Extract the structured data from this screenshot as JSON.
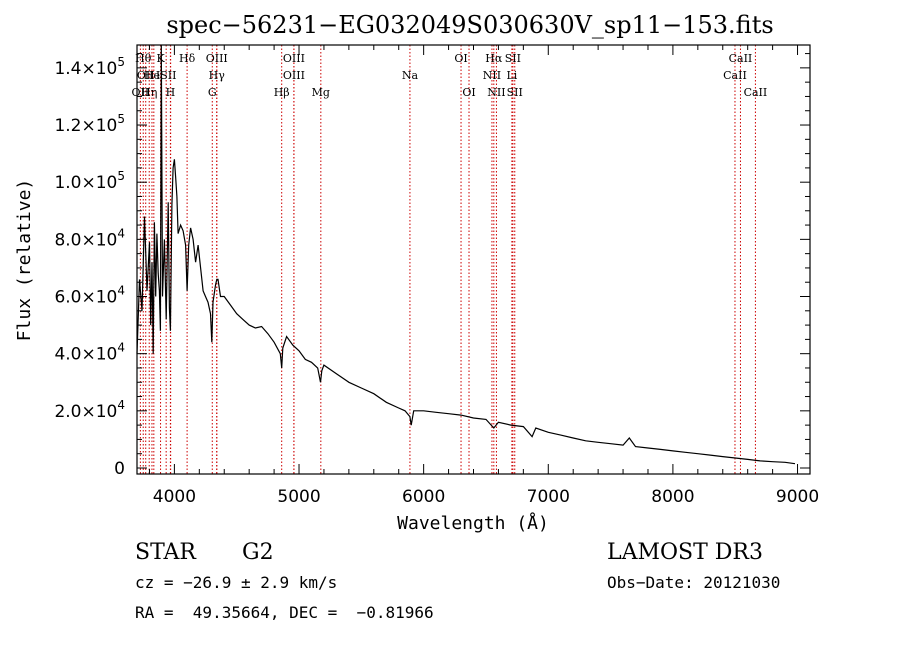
{
  "chart_data": {
    "type": "line",
    "title": "spec−56231−EG032049S030630V_sp11−153.fits",
    "xlabel": "Wavelength (Å)",
    "ylabel": "Flux (relative)",
    "xlim": [
      3700,
      9100
    ],
    "ylim": [
      0,
      148000
    ],
    "x_ticks": [
      {
        "value": 4000,
        "label": "4000"
      },
      {
        "value": 5000,
        "label": "5000"
      },
      {
        "value": 6000,
        "label": "6000"
      },
      {
        "value": 7000,
        "label": "7000"
      },
      {
        "value": 8000,
        "label": "8000"
      },
      {
        "value": 9000,
        "label": "9000"
      }
    ],
    "y_ticks": [
      {
        "value": 0,
        "mant": "0",
        "exp": ""
      },
      {
        "value": 20000,
        "mant": "2.0×10",
        "exp": "4"
      },
      {
        "value": 40000,
        "mant": "4.0×10",
        "exp": "4"
      },
      {
        "value": 60000,
        "mant": "6.0×10",
        "exp": "4"
      },
      {
        "value": 80000,
        "mant": "8.0×10",
        "exp": "4"
      },
      {
        "value": 100000,
        "mant": "1.0×10",
        "exp": "5"
      },
      {
        "value": 120000,
        "mant": "1.2×10",
        "exp": "5"
      },
      {
        "value": 140000,
        "mant": "1.4×10",
        "exp": "5"
      }
    ],
    "series": [
      {
        "name": "flux",
        "x": [
          3700,
          3720,
          3740,
          3760,
          3780,
          3800,
          3810,
          3820,
          3830,
          3840,
          3850,
          3860,
          3870,
          3880,
          3888,
          3895,
          3905,
          3920,
          3934,
          3950,
          3960,
          3968,
          3980,
          3990,
          4000,
          4010,
          4020,
          4030,
          4050,
          4070,
          4090,
          4102,
          4115,
          4130,
          4150,
          4170,
          4190,
          4210,
          4230,
          4250,
          4270,
          4290,
          4300,
          4310,
          4330,
          4340,
          4350,
          4370,
          4400,
          4450,
          4500,
          4550,
          4600,
          4650,
          4700,
          4750,
          4800,
          4850,
          4861,
          4870,
          4900,
          4950,
          5000,
          5050,
          5100,
          5150,
          5172,
          5183,
          5200,
          5300,
          5400,
          5500,
          5600,
          5700,
          5800,
          5850,
          5890,
          5900,
          5920,
          6000,
          6100,
          6200,
          6300,
          6400,
          6500,
          6563,
          6600,
          6700,
          6800,
          6870,
          6900,
          7000,
          7100,
          7200,
          7300,
          7400,
          7500,
          7600,
          7650,
          7700,
          7800,
          7900,
          8000,
          8100,
          8200,
          8300,
          8400,
          8500,
          8600,
          8700,
          8800,
          8900,
          8980
        ],
        "y": [
          40000,
          66000,
          55000,
          88000,
          62000,
          79000,
          50000,
          72000,
          40000,
          86000,
          60000,
          82000,
          68000,
          62000,
          48000,
          150000,
          60000,
          80000,
          52000,
          93000,
          56000,
          48000,
          92000,
          105000,
          108000,
          102000,
          95000,
          82000,
          85000,
          83000,
          78000,
          62000,
          78000,
          84000,
          80000,
          72000,
          78000,
          70000,
          62000,
          60000,
          58000,
          54000,
          44000,
          58000,
          64000,
          66000,
          66000,
          60000,
          60000,
          57000,
          54000,
          52000,
          50000,
          49000,
          49500,
          47000,
          44000,
          40000,
          35000,
          42000,
          46000,
          43000,
          41000,
          38000,
          37000,
          35000,
          30000,
          34000,
          36000,
          33000,
          30000,
          28000,
          26000,
          23000,
          21000,
          20000,
          18000,
          15000,
          20000,
          20000,
          19500,
          19000,
          18500,
          17500,
          17000,
          14000,
          16000,
          15000,
          14500,
          11000,
          14000,
          12500,
          11500,
          10500,
          9500,
          9000,
          8500,
          8000,
          10500,
          7500,
          7000,
          6500,
          6000,
          5500,
          5000,
          4500,
          4000,
          3500,
          3000,
          2500,
          2200,
          2000,
          1500
        ]
      }
    ],
    "lines_top": [
      {
        "wl": 3750,
        "label": "Hθ",
        "row": 0
      },
      {
        "wl": 3835,
        "label": "",
        "row": 0
      },
      {
        "wl": 3889,
        "label": "K",
        "row": 0
      },
      {
        "wl": 3970,
        "label": "",
        "row": 0
      },
      {
        "wl": 4102,
        "label": "Hδ",
        "row": 0
      },
      {
        "wl": 4340,
        "label": "OIII",
        "row": 0
      },
      {
        "wl": 4959,
        "label": "OIII",
        "row": 0
      },
      {
        "wl": 6300,
        "label": "OI",
        "row": 0
      },
      {
        "wl": 6563,
        "label": "Hα",
        "row": 0
      },
      {
        "wl": 6716,
        "label": "SII",
        "row": 0
      },
      {
        "wl": 8542,
        "label": "CaII",
        "row": 0
      },
      {
        "wl": 3770,
        "label": "OII",
        "row": 1
      },
      {
        "wl": 3820,
        "label": "He",
        "row": 1
      },
      {
        "wl": 3934,
        "label": "ISII",
        "row": 1
      },
      {
        "wl": 4340,
        "label": "Hγ",
        "row": 1
      },
      {
        "wl": 4959,
        "label": "OIII",
        "row": 1
      },
      {
        "wl": 5890,
        "label": "Na",
        "row": 1
      },
      {
        "wl": 6548,
        "label": "NII",
        "row": 1
      },
      {
        "wl": 6708,
        "label": "Li",
        "row": 1
      },
      {
        "wl": 8498,
        "label": "CaII",
        "row": 1
      },
      {
        "wl": 3727,
        "label": "OII",
        "row": 2
      },
      {
        "wl": 3798,
        "label": "Hη",
        "row": 2
      },
      {
        "wl": 3968,
        "label": "H",
        "row": 2
      },
      {
        "wl": 4304,
        "label": "G",
        "row": 2
      },
      {
        "wl": 4861,
        "label": "Hβ",
        "row": 2
      },
      {
        "wl": 5175,
        "label": "Mg",
        "row": 2
      },
      {
        "wl": 6364,
        "label": "OI",
        "row": 2
      },
      {
        "wl": 6584,
        "label": "NII",
        "row": 2
      },
      {
        "wl": 6731,
        "label": "SII",
        "row": 2
      },
      {
        "wl": 8662,
        "label": "CaII",
        "row": 2
      }
    ],
    "line_color": "#cc0000"
  },
  "info": {
    "class": "STAR",
    "subclass": "G2",
    "survey": "LAMOST DR3",
    "cz": "cz = −26.9 ± 2.9 km/s",
    "obs_date": "Obs−Date: 20121030",
    "radec": "RA =  49.35664, DEC =  −0.81966"
  }
}
